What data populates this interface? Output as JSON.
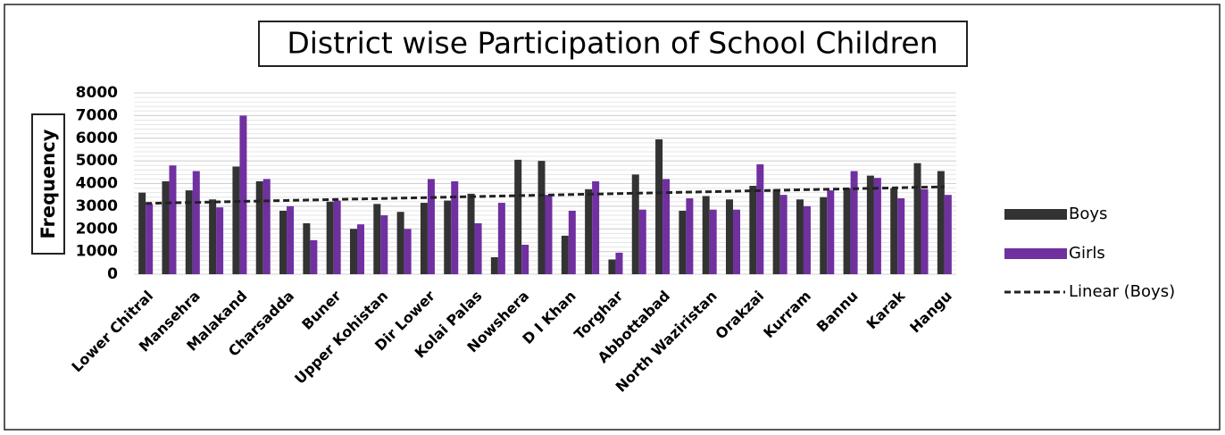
{
  "chart_data": {
    "type": "bar",
    "title": "District wise Participation of School Children",
    "y_label": "Frequency",
    "categories": [
      "Lower Chitral",
      null,
      "Mansehra",
      null,
      "Malakand",
      null,
      "Charsadda",
      null,
      "Buner",
      null,
      "Upper Kohistan",
      null,
      "Dir Lower",
      null,
      "Kolai Palas",
      null,
      "Nowshera",
      null,
      "D I Khan",
      null,
      "Torghar",
      null,
      "Abbottabad",
      null,
      "North Waziristan",
      null,
      "Orakzai",
      null,
      "Kurram",
      null,
      "Bannu",
      null,
      "Karak",
      null,
      "Hangu"
    ],
    "series": [
      {
        "name": "Boys",
        "color": "#333333",
        "values": [
          3600,
          4100,
          3700,
          3300,
          4750,
          4100,
          2800,
          2250,
          3200,
          2000,
          3100,
          2750,
          3150,
          3250,
          3550,
          750,
          5050,
          5000,
          1700,
          3750,
          650,
          4400,
          5950,
          2800,
          3450,
          3300,
          3900,
          3750,
          3300,
          3400,
          3800,
          4350,
          3800,
          4900,
          4550
        ]
      },
      {
        "name": "Girls",
        "color": "#7030a0",
        "values": [
          3100,
          4800,
          4550,
          2950,
          7000,
          4200,
          3000,
          1500,
          3250,
          2200,
          2600,
          2000,
          4200,
          4100,
          2250,
          3150,
          1300,
          3500,
          2800,
          4100,
          950,
          2850,
          4200,
          3350,
          2850,
          2850,
          4850,
          3500,
          3000,
          3700,
          4550,
          4250,
          3350,
          3750,
          3500
        ]
      }
    ],
    "trendline": {
      "series": 0,
      "label": "Linear (Boys)"
    },
    "ylim": [
      0,
      8000
    ],
    "yticks": [
      0,
      1000,
      2000,
      3000,
      4000,
      5000,
      6000,
      7000,
      8000
    ],
    "grid": true,
    "legend": "right"
  }
}
